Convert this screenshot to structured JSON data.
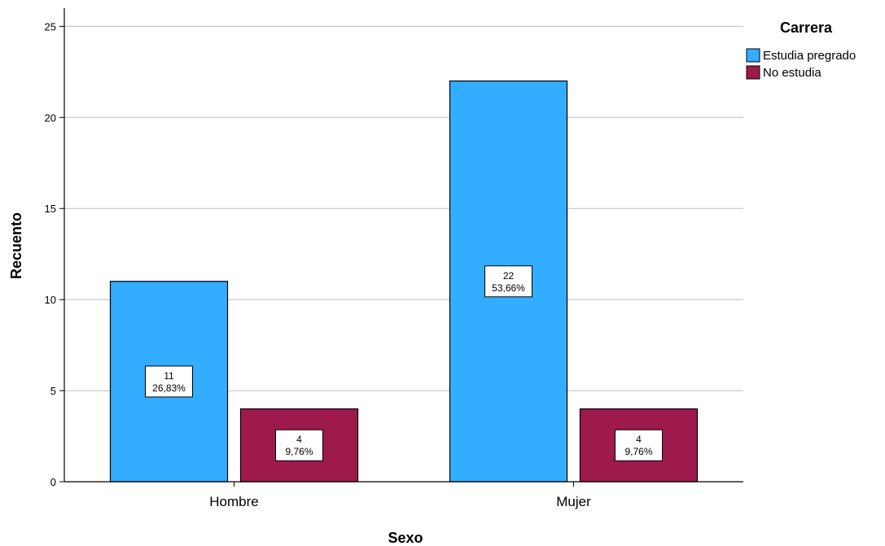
{
  "chart_data": {
    "type": "bar",
    "xlabel": "Sexo",
    "ylabel": "Recuento",
    "categories": [
      "Hombre",
      "Mujer"
    ],
    "ylim": [
      0,
      26
    ],
    "yticks": [
      0,
      5,
      10,
      15,
      20,
      25
    ],
    "grid": true,
    "legend": {
      "title": "Carrera",
      "position": "top-right"
    },
    "series": [
      {
        "name": "Estudia pregrado",
        "color": "#33adff",
        "values": [
          11,
          22
        ],
        "labels": [
          "26,83%",
          "53,66%"
        ]
      },
      {
        "name": "No estudia",
        "color": "#9e1a4d",
        "values": [
          4,
          4
        ],
        "labels": [
          "9,76%",
          "9,76%"
        ]
      }
    ]
  }
}
